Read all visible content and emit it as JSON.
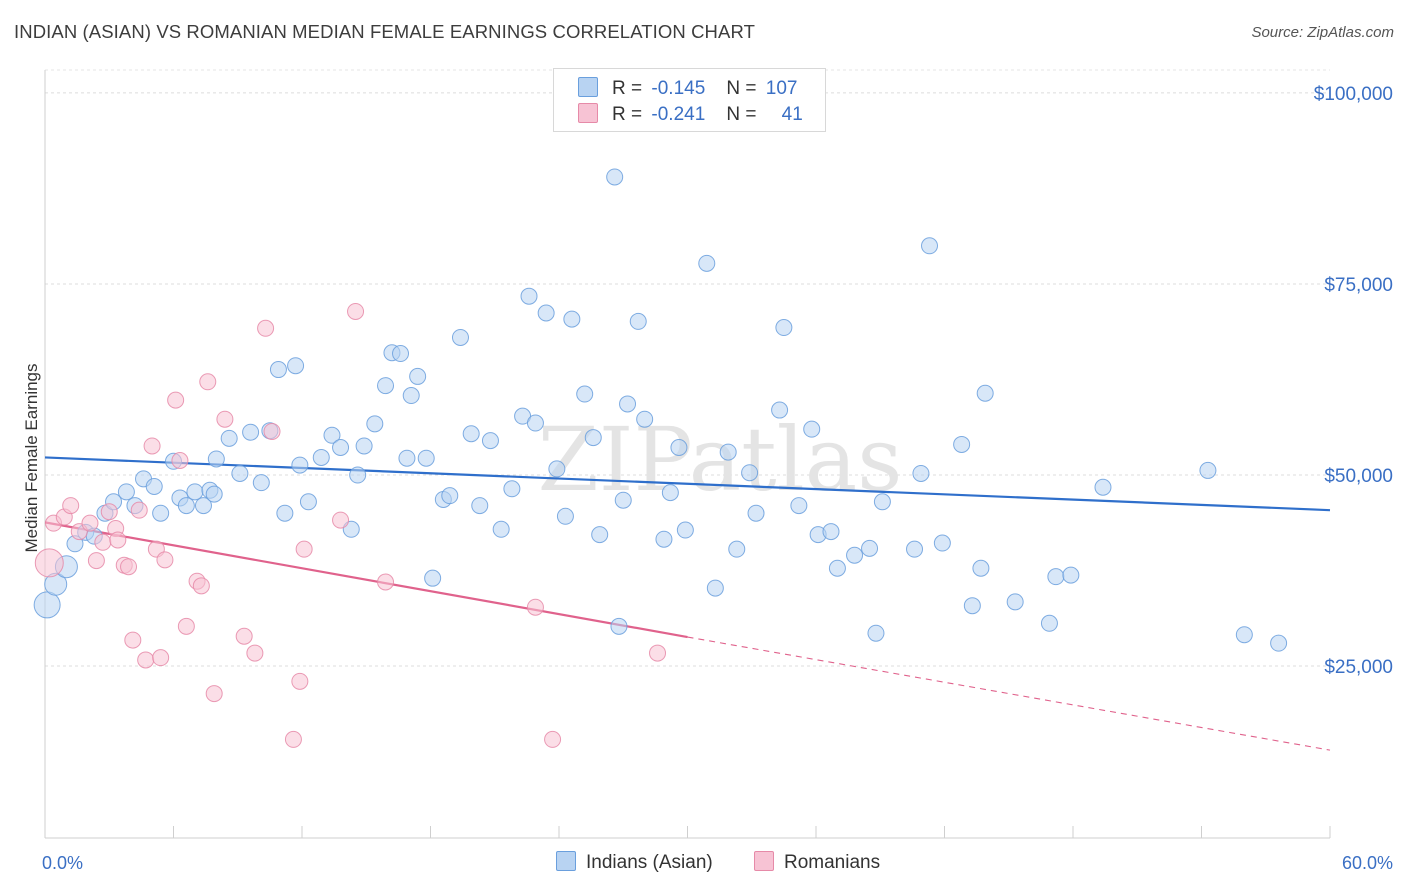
{
  "title": "INDIAN (ASIAN) VS ROMANIAN MEDIAN FEMALE EARNINGS CORRELATION CHART",
  "source": "Source: ZipAtlas.com",
  "watermark": "ZIPatlas",
  "legend": {
    "rows": [
      {
        "r_label": "R =",
        "r_value": "-0.145",
        "n_label": "N =",
        "n_value": "107",
        "color": "#b8d3f2",
        "border": "#6a9fdd"
      },
      {
        "r_label": "R =",
        "r_value": "-0.241",
        "n_label": "N =",
        "n_value": "41",
        "color": "#f7c3d4",
        "border": "#e68aa8"
      }
    ]
  },
  "bottom_legend": {
    "series1": "Indians (Asian)",
    "series2": "Romanians"
  },
  "chart_data": {
    "type": "scatter",
    "ylabel": "Median Female Earnings",
    "xlabel": "",
    "x_tick_labels": [
      "0.0%",
      "60.0%"
    ],
    "y_tick_labels": [
      "$25,000",
      "$50,000",
      "$75,000",
      "$100,000"
    ],
    "y_ticks": [
      25000,
      50000,
      75000,
      100000
    ],
    "xlim": [
      0,
      60
    ],
    "ylim": [
      2500,
      103000
    ],
    "grid": "horizontal dashed",
    "legend_position": "top-center",
    "series": [
      {
        "name": "Indians (Asian)",
        "color": "#6a9fdd",
        "fill": "#b8d3f2",
        "trend": {
          "x0": 0,
          "y0": 52300,
          "x1": 60,
          "y1": 45400,
          "style": "solid"
        },
        "points": [
          [
            0.1,
            33000
          ],
          [
            0.5,
            35700
          ],
          [
            1.0,
            38000
          ],
          [
            1.4,
            41000
          ],
          [
            1.9,
            42500
          ],
          [
            2.3,
            42000
          ],
          [
            2.8,
            45000
          ],
          [
            3.2,
            46500
          ],
          [
            3.8,
            47800
          ],
          [
            4.2,
            46000
          ],
          [
            4.6,
            49500
          ],
          [
            5.1,
            48500
          ],
          [
            5.4,
            45000
          ],
          [
            6.0,
            51800
          ],
          [
            6.3,
            47000
          ],
          [
            6.6,
            46000
          ],
          [
            7.0,
            47800
          ],
          [
            7.4,
            46000
          ],
          [
            7.7,
            48000
          ],
          [
            8.0,
            52100
          ],
          [
            8.6,
            54800
          ],
          [
            9.1,
            50200
          ],
          [
            9.6,
            55600
          ],
          [
            10.1,
            49000
          ],
          [
            10.5,
            55800
          ],
          [
            10.9,
            63800
          ],
          [
            11.2,
            45000
          ],
          [
            11.7,
            64300
          ],
          [
            11.9,
            51300
          ],
          [
            12.3,
            46500
          ],
          [
            12.9,
            52300
          ],
          [
            13.4,
            55200
          ],
          [
            13.8,
            53600
          ],
          [
            14.3,
            42900
          ],
          [
            14.6,
            50000
          ],
          [
            14.9,
            53800
          ],
          [
            15.4,
            56700
          ],
          [
            15.9,
            61700
          ],
          [
            16.2,
            66000
          ],
          [
            16.6,
            65900
          ],
          [
            17.1,
            60400
          ],
          [
            17.4,
            62900
          ],
          [
            17.8,
            52200
          ],
          [
            18.1,
            36500
          ],
          [
            18.6,
            46800
          ],
          [
            18.9,
            47300
          ],
          [
            19.4,
            68000
          ],
          [
            19.9,
            55400
          ],
          [
            20.3,
            46000
          ],
          [
            20.8,
            54500
          ],
          [
            21.3,
            42900
          ],
          [
            21.8,
            48200
          ],
          [
            22.3,
            57700
          ],
          [
            22.6,
            73400
          ],
          [
            22.9,
            56800
          ],
          [
            23.4,
            71200
          ],
          [
            23.9,
            50800
          ],
          [
            24.3,
            44600
          ],
          [
            24.6,
            70400
          ],
          [
            25.2,
            60600
          ],
          [
            25.6,
            54900
          ],
          [
            25.9,
            42200
          ],
          [
            26.6,
            89000
          ],
          [
            26.8,
            30200
          ],
          [
            27.0,
            46700
          ],
          [
            27.2,
            59300
          ],
          [
            27.7,
            70100
          ],
          [
            28.0,
            57300
          ],
          [
            28.9,
            41600
          ],
          [
            29.2,
            47700
          ],
          [
            29.6,
            53600
          ],
          [
            29.9,
            42800
          ],
          [
            30.9,
            77700
          ],
          [
            31.3,
            35200
          ],
          [
            31.9,
            53000
          ],
          [
            32.3,
            40300
          ],
          [
            32.9,
            50300
          ],
          [
            33.2,
            45000
          ],
          [
            34.3,
            58500
          ],
          [
            34.5,
            69300
          ],
          [
            35.2,
            46000
          ],
          [
            35.8,
            56000
          ],
          [
            36.1,
            42200
          ],
          [
            36.7,
            42600
          ],
          [
            37.0,
            37800
          ],
          [
            37.8,
            39500
          ],
          [
            38.5,
            40400
          ],
          [
            38.8,
            29300
          ],
          [
            39.1,
            46500
          ],
          [
            40.6,
            40300
          ],
          [
            40.9,
            50200
          ],
          [
            41.3,
            80000
          ],
          [
            41.9,
            41100
          ],
          [
            42.8,
            54000
          ],
          [
            43.3,
            32900
          ],
          [
            43.7,
            37800
          ],
          [
            43.9,
            60700
          ],
          [
            45.3,
            33400
          ],
          [
            46.9,
            30600
          ],
          [
            47.2,
            36700
          ],
          [
            47.9,
            36900
          ],
          [
            49.4,
            48400
          ],
          [
            54.3,
            50600
          ],
          [
            56.0,
            29100
          ],
          [
            57.6,
            28000
          ],
          [
            7.9,
            47500
          ],
          [
            16.9,
            52200
          ]
        ]
      },
      {
        "name": "Romanians",
        "color": "#e68aa8",
        "fill": "#f7c3d4",
        "trend": {
          "x0": 0,
          "y0": 43800,
          "x1": 30,
          "y1": 28800,
          "x2": 60,
          "y2": 14000,
          "style": "solid-then-dashed"
        },
        "points": [
          [
            0.2,
            38500
          ],
          [
            0.4,
            43700
          ],
          [
            0.9,
            44500
          ],
          [
            1.2,
            46000
          ],
          [
            1.6,
            42600
          ],
          [
            2.1,
            43700
          ],
          [
            2.4,
            38800
          ],
          [
            2.7,
            41200
          ],
          [
            3.0,
            45200
          ],
          [
            3.3,
            43000
          ],
          [
            3.7,
            38200
          ],
          [
            3.9,
            38000
          ],
          [
            4.1,
            28400
          ],
          [
            4.4,
            45400
          ],
          [
            4.7,
            25800
          ],
          [
            5.0,
            53800
          ],
          [
            5.2,
            40300
          ],
          [
            5.4,
            26100
          ],
          [
            5.6,
            38900
          ],
          [
            6.1,
            59800
          ],
          [
            6.3,
            51900
          ],
          [
            6.6,
            30200
          ],
          [
            7.1,
            36100
          ],
          [
            7.3,
            35500
          ],
          [
            7.6,
            62200
          ],
          [
            7.9,
            21400
          ],
          [
            8.4,
            57300
          ],
          [
            9.3,
            28900
          ],
          [
            9.8,
            26700
          ],
          [
            10.3,
            69200
          ],
          [
            10.6,
            55700
          ],
          [
            11.6,
            15400
          ],
          [
            11.9,
            23000
          ],
          [
            12.1,
            40300
          ],
          [
            13.8,
            44100
          ],
          [
            14.5,
            71400
          ],
          [
            15.9,
            36000
          ],
          [
            22.9,
            32700
          ],
          [
            23.7,
            15400
          ],
          [
            28.6,
            26700
          ],
          [
            3.4,
            41500
          ]
        ]
      }
    ]
  }
}
